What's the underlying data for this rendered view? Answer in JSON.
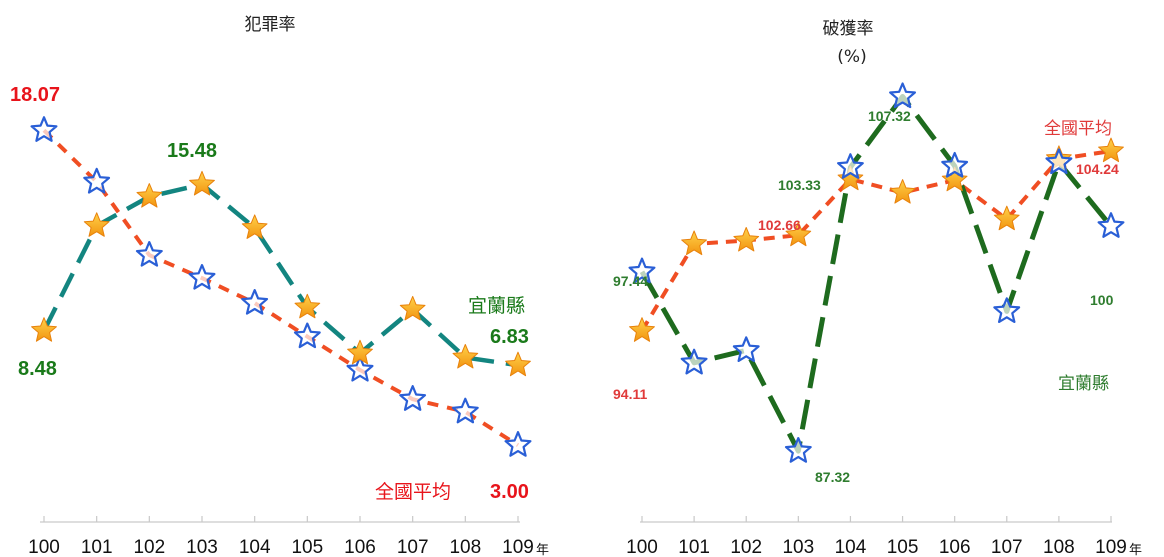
{
  "chart_data": [
    {
      "type": "line",
      "title": "犯罪率",
      "categories": [
        "100",
        "101",
        "102",
        "103",
        "104",
        "105",
        "106",
        "107",
        "108",
        "109"
      ],
      "x_unit": "年",
      "ylim": [
        1,
        20
      ],
      "grid": false,
      "series": [
        {
          "name": "全國平均",
          "color": "#f04e23",
          "marker": "blue-star-outline",
          "values": [
            18.07,
            15.6,
            12.1,
            11.0,
            9.8,
            8.2,
            6.6,
            5.2,
            4.6,
            3.0
          ]
        },
        {
          "name": "宜蘭縣",
          "color": "#138580",
          "marker": "orange-star",
          "values": [
            8.48,
            13.5,
            14.9,
            15.48,
            13.4,
            9.6,
            7.4,
            9.5,
            7.2,
            6.83
          ]
        }
      ],
      "labels": {
        "nat_first": "18.07",
        "yl_first": "8.48",
        "yl_peak": "15.48",
        "yl_last": "6.83",
        "nat_last": "3.00"
      }
    },
    {
      "type": "line",
      "title": "破獲率",
      "subtitle": "(%)",
      "categories": [
        "100",
        "101",
        "102",
        "103",
        "104",
        "105",
        "106",
        "107",
        "108",
        "109"
      ],
      "x_unit": "年",
      "ylim": [
        84,
        110
      ],
      "grid": false,
      "series": [
        {
          "name": "全國平均",
          "color": "#f04e23",
          "marker": "orange-star",
          "values": [
            94.11,
            99.0,
            99.2,
            99.5,
            102.66,
            101.9,
            102.6,
            100.4,
            103.8,
            104.24
          ]
        },
        {
          "name": "宜蘭縣",
          "color": "#1e6b1e",
          "marker": "blue-star-outline",
          "values": [
            97.44,
            92.3,
            93.0,
            87.32,
            103.33,
            107.32,
            103.4,
            95.2,
            103.6,
            100
          ]
        }
      ],
      "labels": {
        "yl_first": "97.44",
        "nat_first": "94.11",
        "yl_low": "87.32",
        "yl_104": "103.33",
        "nat_104": "102.66",
        "yl_peak": "107.32",
        "nat_last": "104.24",
        "yl_last": "100"
      }
    }
  ],
  "colors": {
    "red_label": "#e8141b",
    "green_label": "#1a7a1a",
    "red_label_small": "#e03a3a",
    "green_label_small": "#2f7d2f"
  }
}
